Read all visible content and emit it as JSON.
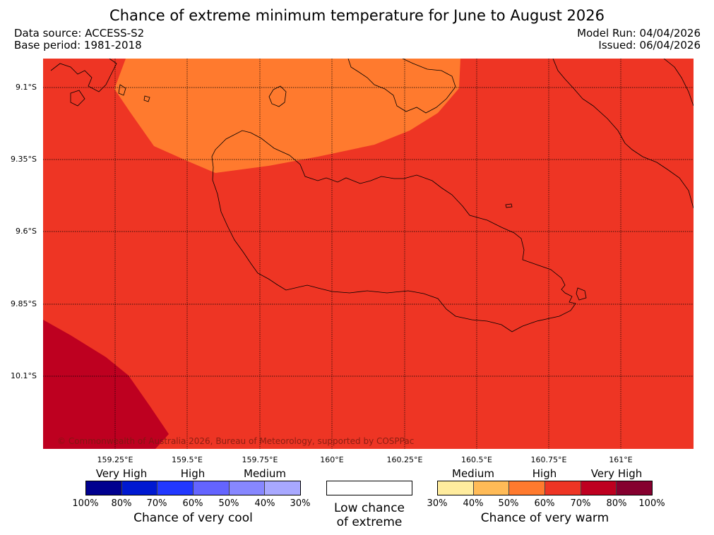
{
  "title": "Chance of extreme minimum temperature for June to August 2026",
  "meta": {
    "data_source": "Data source: ACCESS-S2",
    "base_period": "Base period: 1981-2018",
    "model_run": "Model Run: 04/04/2026",
    "issued": "Issued: 06/04/2026"
  },
  "map": {
    "lat_labels": [
      "9.1°S",
      "9.35°S",
      "9.6°S",
      "9.85°S",
      "10.1°S"
    ],
    "lon_labels": [
      "159.25°E",
      "159.5°E",
      "159.75°E",
      "160°E",
      "160.25°E",
      "160.5°E",
      "160.75°E",
      "161°E"
    ],
    "copyright": "© Commonwealth of Australia 2026, Bureau of Meteorology, supported by COSPPac",
    "colors": {
      "background": "#ee3524",
      "orange": "#ff7a2e",
      "dark_red": "#be0020"
    }
  },
  "legend": {
    "cool": {
      "categories": [
        "Very High",
        "High",
        "Medium"
      ],
      "percents": [
        "100%",
        "80%",
        "70%",
        "60%",
        "50%",
        "40%",
        "30%"
      ],
      "colors": [
        "#00008f",
        "#0019d1",
        "#2238ff",
        "#6464ff",
        "#8787ff",
        "#a8a8ff"
      ],
      "caption": "Chance of very cool"
    },
    "low": {
      "caption_line1": "Low chance",
      "caption_line2": "of extreme"
    },
    "warm": {
      "categories": [
        "Medium",
        "High",
        "Very High"
      ],
      "percents": [
        "30%",
        "40%",
        "50%",
        "60%",
        "70%",
        "80%",
        "100%"
      ],
      "colors": [
        "#ffec9e",
        "#ffbb57",
        "#ff7a2e",
        "#ee3524",
        "#be0020",
        "#85002f"
      ],
      "caption": "Chance of very warm"
    }
  }
}
